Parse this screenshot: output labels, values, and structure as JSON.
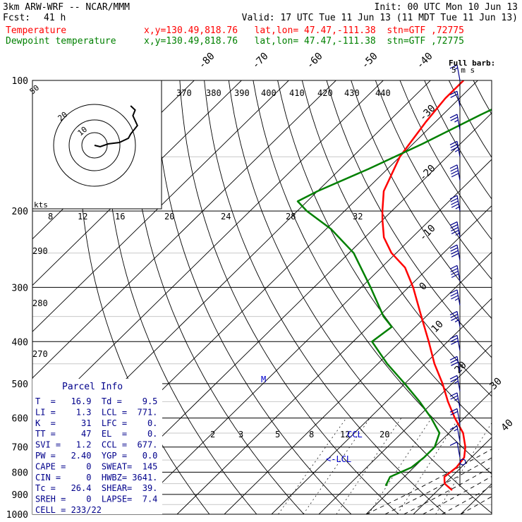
{
  "header": {
    "model": "3km ARW-WRF -- NCAR/MMM",
    "init": "Init: 00 UTC Mon 10 Jun 13",
    "fcst_label": "Fcst:",
    "fcst_value": "41 h",
    "valid": "Valid: 17 UTC Tue 11 Jun 13 (11 MDT Tue 11 Jun 13)"
  },
  "legend": [
    {
      "name": "Temperature",
      "location": "x,y=130.49,818.76   lat,lon= 47.47,-111.38  stn=GTF ,72775",
      "color": "#ff0000"
    },
    {
      "name": "Dewpoint temperature",
      "location": "x,y=130.49,818.76   lat,lon= 47.47,-111.38  stn=GTF ,72775",
      "color": "#008000"
    }
  ],
  "barb_legend": {
    "line1": "Full barb:",
    "line2": "5 m s"
  },
  "hodograph": {
    "speed_rings": [
      "50",
      "20",
      "10"
    ],
    "kts_label": "kts",
    "points": [
      [
        0,
        0
      ],
      [
        -5,
        2
      ],
      [
        -12,
        -2
      ],
      [
        -22,
        -4
      ],
      [
        -30,
        -10
      ],
      [
        -32,
        -16
      ],
      [
        -38,
        -28
      ],
      [
        -34,
        -42
      ],
      [
        -36,
        -50
      ],
      [
        -32,
        -56
      ]
    ]
  },
  "parcel_info": {
    "title": "Parcel Info",
    "rows": [
      "T  =   16.9  Td =    9.5",
      "LI =    1.3  LCL =  771.",
      "K  =     31  LFC =    0.",
      "TT =     47  EL  =    0.",
      "SVI =   1.2  CCL =  677.",
      "PW =   2.40  YGP =   0.0",
      "CAPE =    0  SWEAT=  145",
      "CIN =     0  HWBZ= 3641.",
      "Tc =   26.4  SHEAR=  39.",
      "SREH =    0  LAPSE=  7.4",
      "CELL = 233/22"
    ]
  },
  "annotations": {
    "ccl": "CCL",
    "lcl": "<-LCL",
    "lcl_level": "2",
    "m": "M"
  },
  "chart_data": {
    "type": "line",
    "title": "",
    "yscale": "log",
    "ylim": [
      1000,
      100
    ],
    "pressure_ticks": [
      "100",
      "200",
      "300",
      "400",
      "500",
      "600",
      "700",
      "800",
      "900",
      "1000"
    ],
    "isotherm_labels": [
      "-80",
      "-70",
      "-60",
      "-50",
      "-40",
      "-30",
      "-20",
      "-10",
      "0",
      "10",
      "20",
      "30",
      "40"
    ],
    "theta_labels": [
      "370",
      "380",
      "390",
      "400",
      "410",
      "420",
      "430",
      "440"
    ],
    "theta_side_labels": [
      "290",
      "280",
      "270"
    ],
    "hodo_speed_labels": [
      "8",
      "12",
      "16",
      "20",
      "24",
      "28",
      "32"
    ],
    "mixing_ratio_labels": [
      "2",
      "3",
      "5",
      "8",
      "12",
      "20"
    ],
    "series": [
      {
        "name": "Temperature",
        "color": "#ff0000",
        "points": [
          [
            880,
            23
          ],
          [
            850,
            20
          ],
          [
            820,
            18.5
          ],
          [
            780,
            19
          ],
          [
            740,
            18.5
          ],
          [
            700,
            16.5
          ],
          [
            650,
            13
          ],
          [
            600,
            8
          ],
          [
            550,
            3
          ],
          [
            500,
            -2
          ],
          [
            450,
            -8
          ],
          [
            400,
            -14
          ],
          [
            350,
            -21
          ],
          [
            300,
            -29
          ],
          [
            270,
            -35
          ],
          [
            250,
            -41
          ],
          [
            230,
            -46
          ],
          [
            210,
            -50
          ],
          [
            200,
            -52
          ],
          [
            180,
            -56
          ],
          [
            150,
            -60
          ],
          [
            125,
            -62
          ],
          [
            110,
            -63
          ],
          [
            100,
            -63
          ]
        ]
      },
      {
        "name": "Dewpoint temperature",
        "color": "#008000",
        "points": [
          [
            860,
            8
          ],
          [
            820,
            7
          ],
          [
            780,
            9.5
          ],
          [
            740,
            10
          ],
          [
            700,
            10
          ],
          [
            650,
            8
          ],
          [
            600,
            3
          ],
          [
            550,
            -3
          ],
          [
            500,
            -10
          ],
          [
            450,
            -18
          ],
          [
            400,
            -26
          ],
          [
            370,
            -25
          ],
          [
            350,
            -29
          ],
          [
            300,
            -38
          ],
          [
            250,
            -49
          ],
          [
            220,
            -59
          ],
          [
            200,
            -68
          ],
          [
            190,
            -72
          ],
          [
            180,
            -70
          ],
          [
            160,
            -64
          ],
          [
            140,
            -58
          ],
          [
            120,
            -52
          ],
          [
            100,
            -44
          ]
        ]
      }
    ],
    "wind_barbs_kt": [
      {
        "p": 100,
        "speed": 15,
        "dir": 270
      },
      {
        "p": 115,
        "speed": 20,
        "dir": 265
      },
      {
        "p": 130,
        "speed": 25,
        "dir": 260
      },
      {
        "p": 150,
        "speed": 35,
        "dir": 255
      },
      {
        "p": 170,
        "speed": 40,
        "dir": 255
      },
      {
        "p": 200,
        "speed": 45,
        "dir": 250
      },
      {
        "p": 230,
        "speed": 45,
        "dir": 250
      },
      {
        "p": 260,
        "speed": 40,
        "dir": 250
      },
      {
        "p": 290,
        "speed": 40,
        "dir": 245
      },
      {
        "p": 330,
        "speed": 35,
        "dir": 245
      },
      {
        "p": 370,
        "speed": 35,
        "dir": 240
      },
      {
        "p": 420,
        "speed": 30,
        "dir": 240
      },
      {
        "p": 470,
        "speed": 30,
        "dir": 240
      },
      {
        "p": 520,
        "speed": 25,
        "dir": 240
      },
      {
        "p": 570,
        "speed": 25,
        "dir": 240
      },
      {
        "p": 620,
        "speed": 20,
        "dir": 235
      },
      {
        "p": 680,
        "speed": 15,
        "dir": 230
      },
      {
        "p": 740,
        "speed": 10,
        "dir": 220
      }
    ]
  }
}
